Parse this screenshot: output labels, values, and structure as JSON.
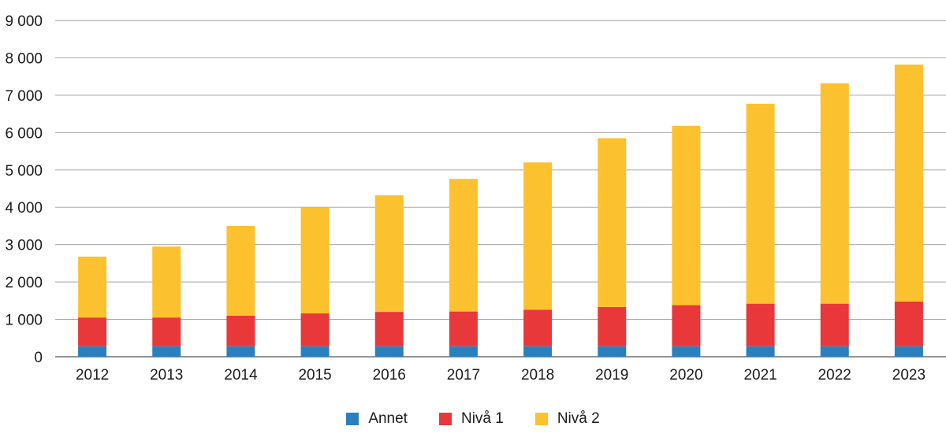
{
  "chart_data": {
    "type": "bar",
    "stacked": true,
    "categories": [
      "2012",
      "2013",
      "2014",
      "2015",
      "2016",
      "2017",
      "2018",
      "2019",
      "2020",
      "2021",
      "2022",
      "2023"
    ],
    "series": [
      {
        "name": "Annet",
        "color": "#2a7fbf",
        "values": [
          280,
          280,
          280,
          280,
          280,
          280,
          280,
          280,
          280,
          280,
          280,
          280
        ]
      },
      {
        "name": "Nivå 1",
        "color": "#e8383a",
        "values": [
          770,
          770,
          820,
          880,
          920,
          930,
          980,
          1050,
          1100,
          1140,
          1140,
          1200
        ]
      },
      {
        "name": "Nivå 2",
        "color": "#fcc12e",
        "values": [
          1630,
          1900,
          2400,
          2840,
          3120,
          3550,
          3940,
          4520,
          4800,
          5350,
          5900,
          6340
        ]
      }
    ],
    "ylim": [
      0,
      9000
    ],
    "yticks": [
      "0",
      "1 000",
      "2 000",
      "3 000",
      "4 000",
      "5 000",
      "6 000",
      "7 000",
      "8 000",
      "9 000"
    ],
    "ytick_values": [
      0,
      1000,
      2000,
      3000,
      4000,
      5000,
      6000,
      7000,
      8000,
      9000
    ],
    "grid": true,
    "legend_position": "bottom-center",
    "title": "",
    "xlabel": "",
    "ylabel": ""
  }
}
